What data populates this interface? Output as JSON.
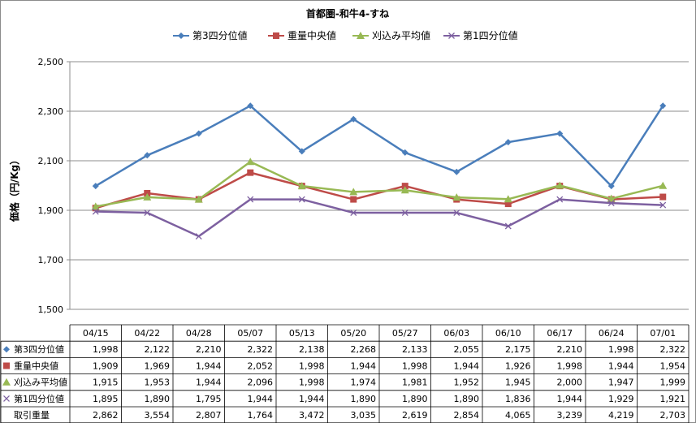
{
  "chart_data": {
    "type": "line",
    "title": "首都圏-和牛4-すね",
    "xlabel": "",
    "ylabel": "価格（円/Kg）",
    "ylim": [
      1500,
      2500
    ],
    "yticks": [
      "1,500",
      "1,700",
      "1,900",
      "2,100",
      "2,300",
      "2,500"
    ],
    "ytick_values": [
      1500,
      1700,
      1900,
      2100,
      2300,
      2500
    ],
    "grid": "horizontal",
    "legend_position": "top",
    "categories": [
      "04/15",
      "04/22",
      "04/28",
      "05/07",
      "05/13",
      "05/20",
      "05/27",
      "06/03",
      "06/10",
      "06/17",
      "06/24",
      "07/01"
    ],
    "series": [
      {
        "name": "第3四分位値",
        "color": "#4a7ebb",
        "marker": "diamond",
        "values": [
          1998,
          2122,
          2210,
          2322,
          2138,
          2268,
          2133,
          2055,
          2175,
          2210,
          1998,
          2322
        ],
        "labels": [
          "1,998",
          "2,122",
          "2,210",
          "2,322",
          "2,138",
          "2,268",
          "2,133",
          "2,055",
          "2,175",
          "2,210",
          "1,998",
          "2,322"
        ]
      },
      {
        "name": "重量中央値",
        "color": "#be4b48",
        "marker": "square",
        "values": [
          1909,
          1969,
          1944,
          2052,
          1998,
          1944,
          1998,
          1944,
          1926,
          1998,
          1944,
          1954
        ],
        "labels": [
          "1,909",
          "1,969",
          "1,944",
          "2,052",
          "1,998",
          "1,944",
          "1,998",
          "1,944",
          "1,926",
          "1,998",
          "1,944",
          "1,954"
        ]
      },
      {
        "name": "刈込み平均値",
        "color": "#98b954",
        "marker": "triangle",
        "values": [
          1915,
          1953,
          1944,
          2096,
          1998,
          1974,
          1981,
          1952,
          1945,
          2000,
          1947,
          1999
        ],
        "labels": [
          "1,915",
          "1,953",
          "1,944",
          "2,096",
          "1,998",
          "1,974",
          "1,981",
          "1,952",
          "1,945",
          "2,000",
          "1,947",
          "1,999"
        ]
      },
      {
        "name": "第1四分位値",
        "color": "#7d60a0",
        "marker": "x",
        "values": [
          1895,
          1890,
          1795,
          1944,
          1944,
          1890,
          1890,
          1890,
          1836,
          1944,
          1929,
          1921
        ],
        "labels": [
          "1,895",
          "1,890",
          "1,795",
          "1,944",
          "1,944",
          "1,890",
          "1,890",
          "1,890",
          "1,836",
          "1,944",
          "1,929",
          "1,921"
        ]
      }
    ],
    "table": {
      "extra_rows": [
        {
          "name": "取引重量",
          "labels": [
            "2,862",
            "3,554",
            "2,807",
            "1,764",
            "3,472",
            "3,035",
            "2,619",
            "2,854",
            "4,065",
            "3,239",
            "4,219",
            "2,703"
          ]
        }
      ]
    }
  }
}
